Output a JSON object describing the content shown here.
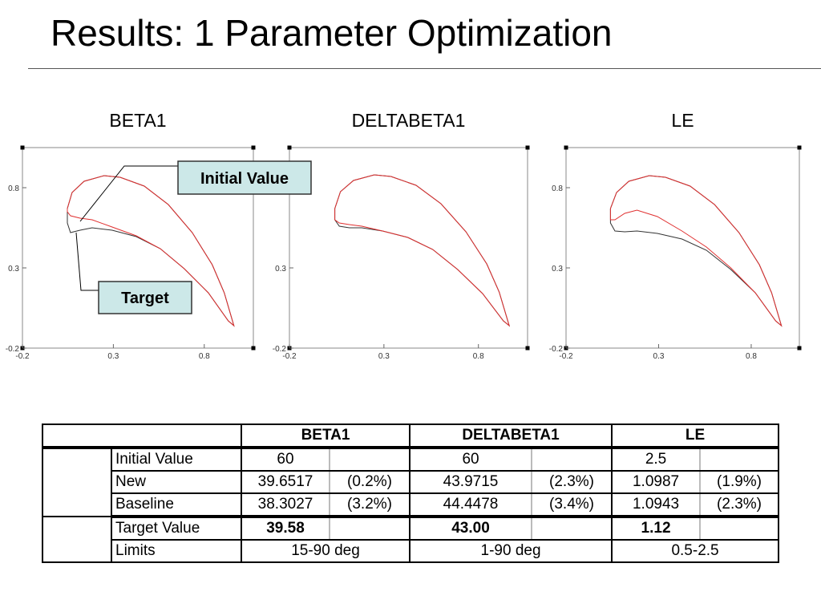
{
  "title": "Results: 1 Parameter Optimization",
  "annotations": [
    "Initial Value",
    "Target"
  ],
  "chart_data": [
    {
      "type": "line",
      "title": "BETA1",
      "xlim": [
        -0.2,
        1.07
      ],
      "ylim": [
        -0.2,
        1.05
      ],
      "xticks": [
        -0.2,
        0.3,
        0.8
      ],
      "yticks": [
        -0.2,
        0.3,
        0.8
      ],
      "series": [
        {
          "color": "#333333",
          "x": [
            0.047,
            0.073,
            0.139,
            0.249,
            0.337,
            0.47,
            0.602,
            0.734,
            0.844,
            0.91,
            0.963,
            0.932,
            0.822,
            0.69,
            0.558,
            0.426,
            0.293,
            0.183,
            0.117,
            0.064,
            0.047,
            0.047
          ],
          "values": [
            0.67,
            0.77,
            0.84,
            0.875,
            0.865,
            0.81,
            0.695,
            0.52,
            0.32,
            0.145,
            -0.06,
            -0.03,
            0.145,
            0.295,
            0.42,
            0.495,
            0.535,
            0.55,
            0.535,
            0.52,
            0.58,
            0.67
          ]
        },
        {
          "color": "#e03030",
          "x": [
            0.047,
            0.073,
            0.139,
            0.249,
            0.337,
            0.47,
            0.602,
            0.734,
            0.844,
            0.91,
            0.963,
            0.932,
            0.822,
            0.69,
            0.558,
            0.426,
            0.293,
            0.183,
            0.117,
            0.064,
            0.047,
            0.047
          ],
          "values": [
            0.67,
            0.77,
            0.84,
            0.875,
            0.865,
            0.81,
            0.695,
            0.52,
            0.32,
            0.145,
            -0.06,
            -0.03,
            0.145,
            0.295,
            0.42,
            0.5,
            0.555,
            0.6,
            0.61,
            0.625,
            0.65,
            0.67
          ]
        }
      ]
    },
    {
      "type": "line",
      "title": "DELTABETA1",
      "xlim": [
        -0.2,
        1.06
      ],
      "ylim": [
        -0.2,
        1.05
      ],
      "xticks": [
        -0.2,
        0.3,
        0.8
      ],
      "yticks": [
        -0.2,
        0.3,
        0.8
      ],
      "series": [
        {
          "color": "#333333",
          "x": [
            0.04,
            0.07,
            0.139,
            0.249,
            0.337,
            0.47,
            0.602,
            0.734,
            0.844,
            0.91,
            0.963,
            0.932,
            0.822,
            0.69,
            0.558,
            0.426,
            0.293,
            0.183,
            0.117,
            0.064,
            0.04,
            0.04
          ],
          "values": [
            0.67,
            0.775,
            0.845,
            0.88,
            0.87,
            0.815,
            0.7,
            0.525,
            0.325,
            0.15,
            -0.06,
            -0.03,
            0.14,
            0.29,
            0.415,
            0.49,
            0.53,
            0.55,
            0.55,
            0.56,
            0.6,
            0.67
          ]
        },
        {
          "color": "#e03030",
          "x": [
            0.04,
            0.07,
            0.139,
            0.249,
            0.337,
            0.47,
            0.602,
            0.734,
            0.844,
            0.91,
            0.963,
            0.932,
            0.822,
            0.69,
            0.558,
            0.426,
            0.293,
            0.183,
            0.117,
            0.064,
            0.04,
            0.04
          ],
          "values": [
            0.67,
            0.775,
            0.845,
            0.88,
            0.87,
            0.815,
            0.7,
            0.525,
            0.325,
            0.15,
            -0.06,
            -0.03,
            0.14,
            0.29,
            0.415,
            0.49,
            0.53,
            0.56,
            0.57,
            0.58,
            0.6,
            0.67
          ]
        }
      ]
    },
    {
      "type": "line",
      "title": "LE",
      "xlim": [
        -0.2,
        1.06
      ],
      "ylim": [
        -0.2,
        1.05
      ],
      "xticks": [
        -0.2,
        0.3,
        0.8
      ],
      "yticks": [
        -0.2,
        0.3,
        0.8
      ],
      "series": [
        {
          "color": "#333333",
          "x": [
            0.04,
            0.073,
            0.139,
            0.249,
            0.337,
            0.47,
            0.602,
            0.734,
            0.844,
            0.91,
            0.963,
            0.932,
            0.822,
            0.69,
            0.558,
            0.426,
            0.293,
            0.183,
            0.117,
            0.064,
            0.04,
            0.04
          ],
          "values": [
            0.67,
            0.77,
            0.84,
            0.875,
            0.865,
            0.81,
            0.695,
            0.52,
            0.32,
            0.145,
            -0.06,
            -0.03,
            0.145,
            0.29,
            0.41,
            0.48,
            0.515,
            0.53,
            0.525,
            0.53,
            0.58,
            0.67
          ]
        },
        {
          "color": "#e03030",
          "x": [
            0.04,
            0.073,
            0.139,
            0.249,
            0.337,
            0.47,
            0.602,
            0.734,
            0.844,
            0.91,
            0.963,
            0.932,
            0.822,
            0.69,
            0.558,
            0.426,
            0.293,
            0.183,
            0.117,
            0.064,
            0.04,
            0.04
          ],
          "values": [
            0.67,
            0.77,
            0.84,
            0.875,
            0.865,
            0.81,
            0.695,
            0.52,
            0.32,
            0.145,
            -0.06,
            -0.03,
            0.145,
            0.3,
            0.43,
            0.53,
            0.62,
            0.66,
            0.64,
            0.6,
            0.6,
            0.67
          ]
        }
      ]
    }
  ],
  "table": {
    "header": [
      "BETA1",
      "DELTABETA1",
      "LE"
    ],
    "rows": [
      [
        "Initial Value",
        "60",
        "60",
        "2.5"
      ],
      [
        "New",
        "39.6517",
        "(0.2%)",
        "43.9715",
        "(2.3%)",
        "1.0987",
        "(1.9%)"
      ],
      [
        "Baseline",
        "38.3027",
        "(3.2%)",
        "44.4478",
        "(3.4%)",
        "1.0943",
        "(2.3%)"
      ],
      [
        "Target Value",
        "39.58",
        "43.00",
        "1.12"
      ],
      [
        "Limits",
        "15-90 deg",
        "1-90 deg",
        "0.5-2.5"
      ]
    ]
  }
}
